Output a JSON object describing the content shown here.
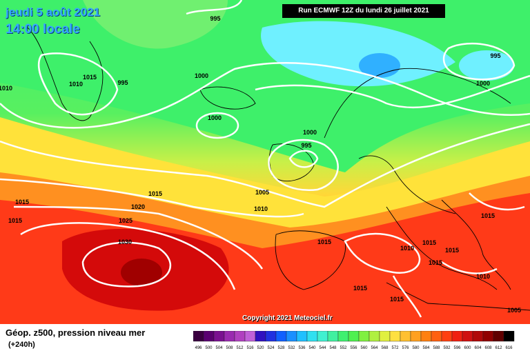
{
  "header": {
    "date_line1": "jeudi 5 août 2021",
    "date_line2": "14:00 locale",
    "run_info": "Run ECMWF 12Z du lundi 26 juillet 2021"
  },
  "footer": {
    "parameter": "Géop. z500, pression niveau mer",
    "lead_time": "(+240h)",
    "copyright": "Copyright 2021 Meteociel.fr"
  },
  "map": {
    "isobar_labels": [
      "995",
      "1015",
      "1010",
      "995",
      "1000",
      "1000",
      "1000",
      "995",
      "995",
      "1000",
      "1010",
      "1015",
      "1015",
      "1020",
      "1025",
      "1030",
      "1005",
      "1010",
      "1015",
      "1015",
      "1010",
      "1015",
      "1015",
      "1015",
      "1010",
      "1015",
      "1015",
      "1005",
      "1015"
    ],
    "colors": {
      "purple": "#6a0080",
      "blue": "#2f6fff",
      "cyan": "#5fe8ff",
      "green": "#2ee84a",
      "lightgreen": "#7ef26a",
      "yellow": "#f5f34a",
      "orange": "#ff9a1a",
      "red": "#ff3a1a",
      "darkred": "#c80000"
    }
  },
  "scale": {
    "labels": [
      "496",
      "500",
      "504",
      "508",
      "512",
      "516",
      "520",
      "524",
      "528",
      "532",
      "536",
      "540",
      "544",
      "548",
      "552",
      "556",
      "560",
      "564",
      "568",
      "572",
      "576",
      "580",
      "584",
      "588",
      "592",
      "596",
      "600",
      "604",
      "608",
      "612",
      "616"
    ],
    "colors": [
      "#3a0040",
      "#5a0070",
      "#7a1090",
      "#9a2ab0",
      "#b040c0",
      "#c060d8",
      "#3010c0",
      "#2030e0",
      "#1060ff",
      "#1a90ff",
      "#20c0ff",
      "#30e0f0",
      "#40f0d0",
      "#40f0a0",
      "#40f070",
      "#50f050",
      "#80f040",
      "#b0f040",
      "#e0f040",
      "#ffe040",
      "#ffc030",
      "#ffa020",
      "#ff8010",
      "#ff6010",
      "#ff4010",
      "#f02010",
      "#d01010",
      "#b00808",
      "#900000",
      "#600000",
      "#000000"
    ]
  }
}
